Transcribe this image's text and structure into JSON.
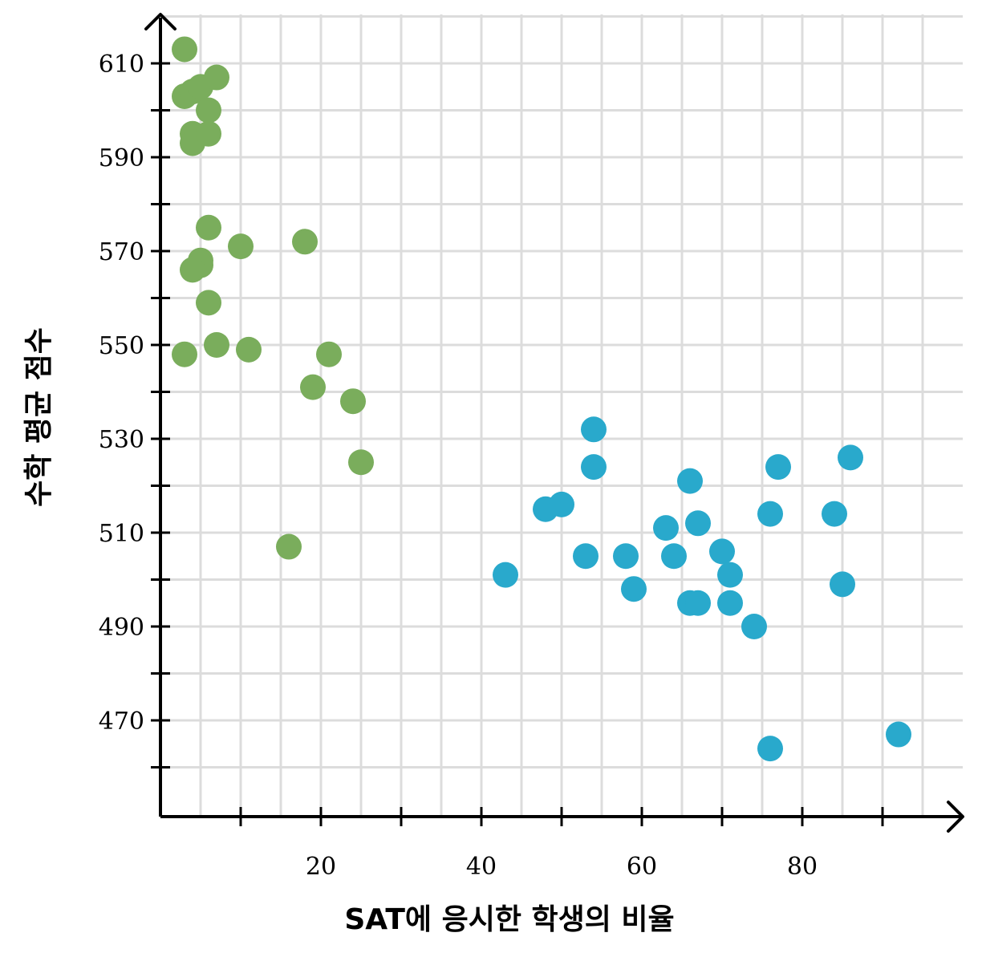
{
  "chart_data": {
    "type": "scatter",
    "xlabel": "SAT에 응시한 학생의 비율",
    "ylabel": "수학 평균 점수",
    "xlim": [
      0,
      100
    ],
    "ylim": [
      450,
      618
    ],
    "x_ticks": [
      20,
      40,
      60,
      80
    ],
    "y_ticks": [
      470,
      490,
      510,
      530,
      550,
      570,
      590,
      610
    ],
    "grid": true,
    "series": [
      {
        "color": "#7aad5c",
        "points": [
          [
            3,
            613
          ],
          [
            3,
            603
          ],
          [
            4,
            604
          ],
          [
            5,
            605
          ],
          [
            7,
            607
          ],
          [
            6,
            600
          ],
          [
            4,
            595
          ],
          [
            4,
            593
          ],
          [
            6,
            595
          ],
          [
            6,
            575
          ],
          [
            10,
            571
          ],
          [
            18,
            572
          ],
          [
            5,
            568
          ],
          [
            5,
            567
          ],
          [
            4,
            566
          ],
          [
            6,
            559
          ],
          [
            3,
            548
          ],
          [
            7,
            550
          ],
          [
            11,
            549
          ],
          [
            21,
            548
          ],
          [
            19,
            541
          ],
          [
            24,
            538
          ],
          [
            25,
            525
          ],
          [
            16,
            507
          ]
        ]
      },
      {
        "color": "#29a9cc",
        "points": [
          [
            54,
            532
          ],
          [
            54,
            524
          ],
          [
            48,
            515
          ],
          [
            50,
            516
          ],
          [
            43,
            501
          ],
          [
            53,
            505
          ],
          [
            58,
            505
          ],
          [
            59,
            498
          ],
          [
            63,
            511
          ],
          [
            64,
            505
          ],
          [
            66,
            521
          ],
          [
            67,
            512
          ],
          [
            66,
            495
          ],
          [
            67,
            495
          ],
          [
            70,
            506
          ],
          [
            71,
            501
          ],
          [
            71,
            495
          ],
          [
            74,
            490
          ],
          [
            76,
            514
          ],
          [
            77,
            524
          ],
          [
            84,
            514
          ],
          [
            86,
            526
          ],
          [
            85,
            499
          ],
          [
            76,
            464
          ],
          [
            92,
            467
          ]
        ]
      }
    ]
  },
  "colors": {
    "axis": "#000000",
    "grid": "#dcdcdc"
  }
}
